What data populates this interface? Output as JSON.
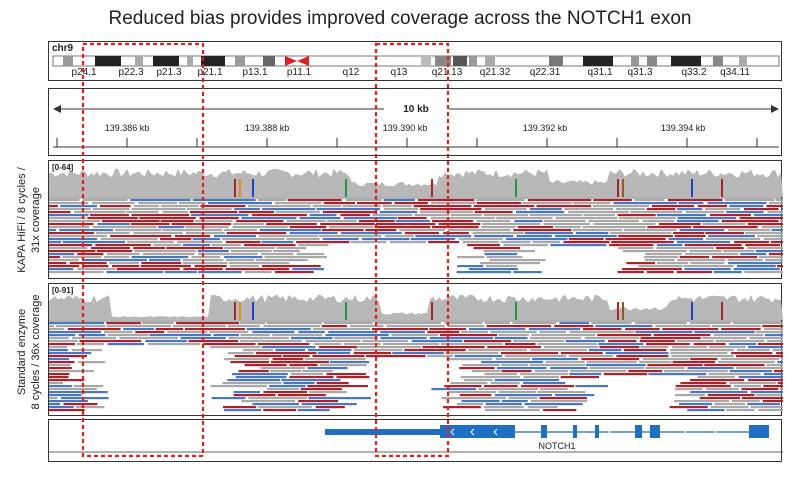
{
  "title": "Reduced bias provides improved coverage across the NOTCH1 exon",
  "ideogram": {
    "chromosome": "chr9",
    "bands": [
      "p24.1",
      "p22.3",
      "p21.3",
      "p21.1",
      "p13.1",
      "p11.1",
      "q12",
      "q13",
      "q21.13",
      "q21.32",
      "q22.31",
      "q31.1",
      "q31.3",
      "q33.2",
      "q34.11"
    ]
  },
  "ruler": {
    "span": "10 kb",
    "ticks": [
      "139.386 kb",
      "139.388 kb",
      "139.390 kb",
      "139.392 kb",
      "139.394 kb"
    ]
  },
  "tracks": [
    {
      "label_line1": "KAPA HiFi / 8 cycles /",
      "label_line2": "31x coverage",
      "scale": "[0-64]"
    },
    {
      "label_line1": "Standard enzyme",
      "label_line2": "8 cycles / 36x coverage",
      "scale": "[0-91]"
    }
  ],
  "gene": {
    "name": "NOTCH1"
  },
  "colors": {
    "coverage": "#b8b8b8",
    "read_gray": "#a9a9a9",
    "read_red": "#a8232b",
    "read_blue": "#4a78c0",
    "highlight": "#e0201a",
    "gene": "#1f6fc4"
  }
}
